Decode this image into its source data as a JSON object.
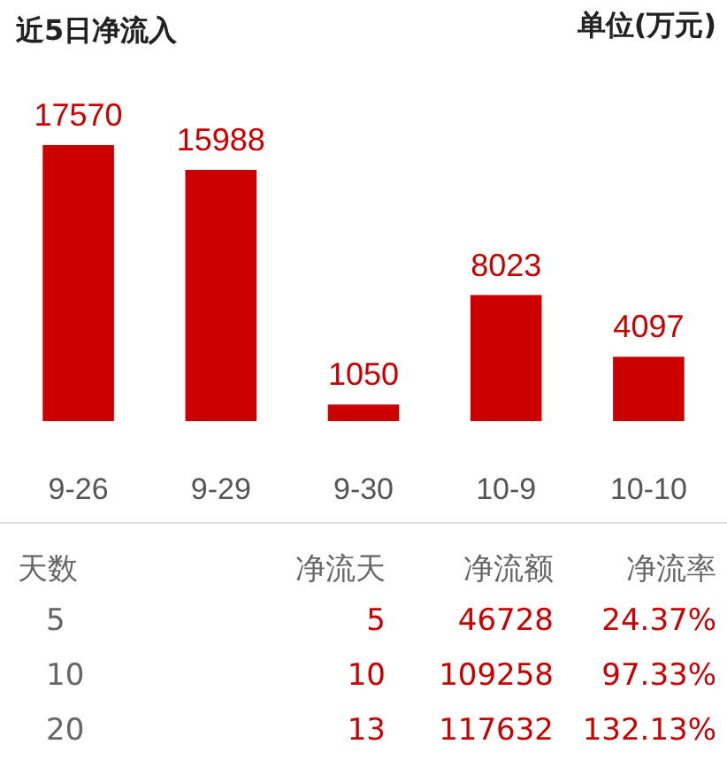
{
  "chart_data": [
    {
      "type": "bar",
      "title": "近5日净流入",
      "annotations": [
        "单位(万元)"
      ],
      "categories": [
        "9-26",
        "9-29",
        "9-30",
        "10-9",
        "10-10"
      ],
      "values": [
        17570,
        15988,
        1050,
        8023,
        4097
      ],
      "color": "#cc0000",
      "data_labels": true
    },
    {
      "type": "other",
      "annotations": [
        "天数",
        "净流天",
        "净流额",
        "净流率",
        "5",
        "5",
        "46728",
        "24.37%",
        "10",
        "10",
        "109258",
        "97.33%",
        "20",
        "13",
        "117632",
        "132.13%"
      ]
    }
  ]
}
